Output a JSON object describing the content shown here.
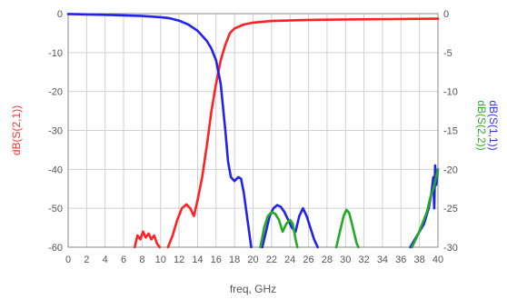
{
  "chart_data": {
    "type": "line",
    "xlabel": "freq, GHz",
    "xlim": [
      0,
      40
    ],
    "x_ticks": [
      "0",
      "2",
      "4",
      "6",
      "8",
      "10",
      "12",
      "14",
      "16",
      "18",
      "20",
      "22",
      "24",
      "26",
      "28",
      "30",
      "32",
      "34",
      "36",
      "38",
      "40"
    ],
    "left_axis": {
      "label": "dB(S(2,1))",
      "color": "#ff3333",
      "ylim": [
        -60,
        0
      ],
      "ticks": [
        "0",
        "-10",
        "-20",
        "-30",
        "-40",
        "-50",
        "-60"
      ]
    },
    "right_axis": {
      "labels": [
        {
          "text": "dB(S(1,1))",
          "color": "#3333ff"
        },
        {
          "text": "dB(S(2,2))",
          "color": "#33aa33"
        }
      ],
      "ylim": [
        -30,
        0
      ],
      "ticks": [
        "0",
        "-5",
        "-10",
        "-15",
        "-20",
        "-25",
        "-30"
      ]
    },
    "grid": true,
    "series": [
      {
        "name": "dB(S(2,1))",
        "axis": "left",
        "color": "#ff2222",
        "segments": [
          [
            [
              7.2,
              -60
            ],
            [
              7.5,
              -57
            ],
            [
              7.8,
              -58
            ],
            [
              8.1,
              -56
            ],
            [
              8.4,
              -57.5
            ],
            [
              8.7,
              -56.5
            ],
            [
              9.0,
              -58
            ],
            [
              9.3,
              -57
            ],
            [
              9.6,
              -59
            ],
            [
              9.9,
              -60
            ]
          ],
          [
            [
              10.8,
              -60
            ],
            [
              11.3,
              -57
            ],
            [
              11.8,
              -53
            ],
            [
              12.3,
              -50
            ],
            [
              12.8,
              -49
            ],
            [
              13.2,
              -50
            ],
            [
              13.6,
              -52
            ],
            [
              14.0,
              -48
            ],
            [
              14.5,
              -42
            ],
            [
              15.0,
              -34
            ],
            [
              15.5,
              -25
            ],
            [
              16.0,
              -18
            ],
            [
              16.5,
              -12
            ],
            [
              17.0,
              -8
            ],
            [
              17.5,
              -5
            ],
            [
              18,
              -3.8
            ],
            [
              19,
              -2.8
            ],
            [
              20,
              -2.3
            ],
            [
              22,
              -1.9
            ],
            [
              26,
              -1.6
            ],
            [
              30,
              -1.5
            ],
            [
              35,
              -1.4
            ],
            [
              40,
              -1.3
            ]
          ]
        ]
      },
      {
        "name": "dB(S(1,1))",
        "axis": "right",
        "color": "#2222ee",
        "segments": [
          [
            [
              0,
              -0.05
            ],
            [
              4,
              -0.15
            ],
            [
              8,
              -0.3
            ],
            [
              10,
              -0.45
            ],
            [
              11,
              -0.6
            ],
            [
              12,
              -0.9
            ],
            [
              13,
              -1.4
            ],
            [
              14,
              -2.2
            ],
            [
              15,
              -3.5
            ],
            [
              15.5,
              -4.5
            ],
            [
              16,
              -6
            ],
            [
              16.5,
              -9
            ],
            [
              17,
              -15
            ],
            [
              17.3,
              -19
            ],
            [
              17.6,
              -21
            ],
            [
              18.0,
              -21.5
            ],
            [
              18.4,
              -21
            ],
            [
              18.7,
              -21.2
            ],
            [
              19.0,
              -23
            ],
            [
              19.4,
              -26.5
            ],
            [
              19.8,
              -30
            ]
          ],
          [
            [
              21.0,
              -30
            ],
            [
              21.4,
              -28
            ],
            [
              21.8,
              -26
            ],
            [
              22.2,
              -25
            ],
            [
              22.6,
              -24.6
            ],
            [
              23.0,
              -24.8
            ],
            [
              23.4,
              -25.5
            ],
            [
              23.8,
              -26.5
            ],
            [
              24.2,
              -27.5
            ],
            [
              24.6,
              -28
            ],
            [
              25.0,
              -26
            ],
            [
              25.4,
              -25
            ],
            [
              25.8,
              -26
            ],
            [
              26.2,
              -27.5
            ],
            [
              26.6,
              -29
            ],
            [
              27.0,
              -30
            ]
          ],
          [
            [
              37.0,
              -30
            ],
            [
              37.5,
              -29
            ],
            [
              38.0,
              -28
            ],
            [
              38.5,
              -27
            ],
            [
              39.0,
              -25
            ],
            [
              39.3,
              -23
            ],
            [
              39.5,
              -21
            ],
            [
              39.6,
              -25
            ],
            [
              39.7,
              -19.5
            ],
            [
              39.8,
              -22
            ],
            [
              40.0,
              -20
            ]
          ]
        ]
      },
      {
        "name": "dB(S(2,2))",
        "axis": "right",
        "color": "#22aa22",
        "segments": [
          [
            [
              20.8,
              -30
            ],
            [
              21.2,
              -27.5
            ],
            [
              21.6,
              -26
            ],
            [
              22.0,
              -25.5
            ],
            [
              22.4,
              -25.7
            ],
            [
              22.8,
              -26.5
            ],
            [
              23.2,
              -28
            ],
            [
              23.6,
              -27
            ],
            [
              24.0,
              -26.5
            ],
            [
              24.3,
              -27
            ],
            [
              24.6,
              -29
            ],
            [
              24.8,
              -30
            ]
          ],
          [
            [
              29.0,
              -30
            ],
            [
              29.4,
              -28
            ],
            [
              29.8,
              -26
            ],
            [
              30.1,
              -25.2
            ],
            [
              30.4,
              -25.6
            ],
            [
              30.8,
              -27.5
            ],
            [
              31.2,
              -29.5
            ],
            [
              31.4,
              -30
            ]
          ],
          [
            [
              37.2,
              -30
            ],
            [
              37.8,
              -28.5
            ],
            [
              38.3,
              -27
            ],
            [
              38.8,
              -25.5
            ],
            [
              39.2,
              -23.5
            ],
            [
              39.5,
              -22.5
            ],
            [
              39.8,
              -21
            ],
            [
              40.0,
              -20
            ]
          ]
        ]
      }
    ]
  }
}
